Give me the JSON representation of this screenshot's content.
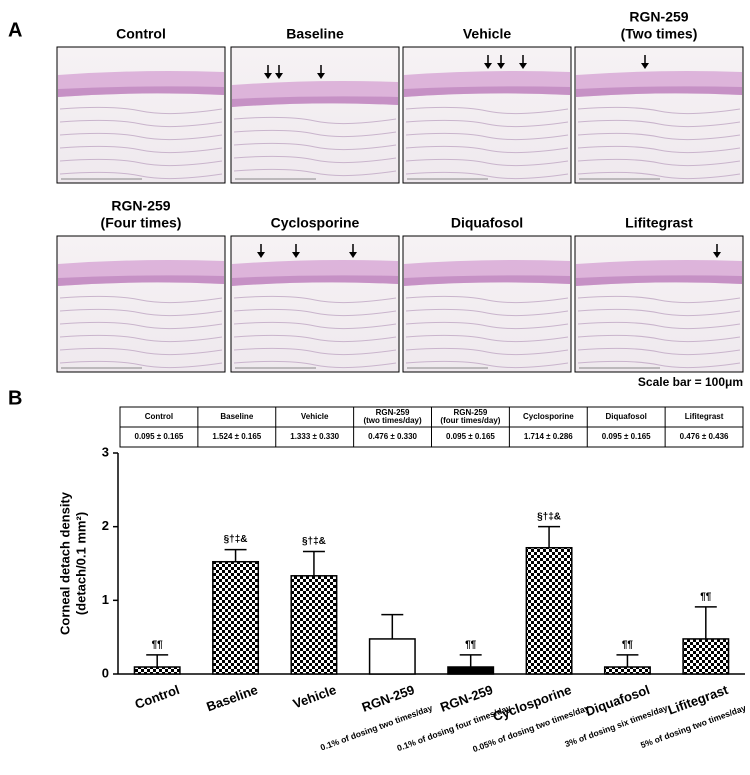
{
  "panel_a": {
    "label": "A",
    "panels": [
      {
        "title": [
          "Control"
        ]
      },
      {
        "title": [
          "Baseline"
        ]
      },
      {
        "title": [
          "Vehicle"
        ]
      },
      {
        "title": [
          "RGN-259",
          "(Two times)"
        ]
      },
      {
        "title": [
          "RGN-259",
          "(Four times)"
        ]
      },
      {
        "title": [
          "Cyclosporine"
        ]
      },
      {
        "title": [
          "Diquafosol"
        ]
      },
      {
        "title": [
          "Lifitegrast"
        ]
      }
    ],
    "scale_bar": "Scale bar = 100μm"
  },
  "panel_b": {
    "label": "B",
    "table": {
      "header": [
        "Control",
        "Baseline",
        "Vehicle",
        "RGN-259\n(two times/day)",
        "RGN-259\n(four times/day)",
        "Cyclosporine",
        "Diquafosol",
        "Lifitegrast"
      ],
      "row": [
        "0.095 ± 0.165",
        "1.524 ± 0.165",
        "1.333 ± 0.330",
        "0.476 ± 0.330",
        "0.095 ± 0.165",
        "1.714 ± 0.286",
        "0.095 ± 0.165",
        "0.476 ± 0.436"
      ]
    }
  },
  "chart_data": {
    "type": "bar",
    "y_label": [
      "Corneal detach density",
      "(detach/0.1 mm²)"
    ],
    "categories": [
      "Control",
      "Baseline",
      "Vehicle",
      "RGN-259",
      "RGN-259",
      "Cyclosporine",
      "Diquafosol",
      "Lifitegrast"
    ],
    "sublabels": [
      null,
      null,
      null,
      "0.1% of dosing two times/day",
      "0.1% of dosing four times/day",
      "0.05% of dosing two times/day",
      "3% of dosing six times/day",
      "5% of dosing two times/day"
    ],
    "values": [
      0.095,
      1.524,
      1.333,
      0.476,
      0.095,
      1.714,
      0.095,
      0.476
    ],
    "errors": [
      0.165,
      0.165,
      0.33,
      0.33,
      0.165,
      0.286,
      0.165,
      0.436
    ],
    "annotations": [
      "¶¶",
      "§†‡&",
      "§†‡&",
      null,
      "¶¶",
      "§†‡&",
      "¶¶",
      "¶¶"
    ],
    "fills": [
      "checker",
      "checker",
      "checker",
      "white",
      "black",
      "checker",
      "checker",
      "checker"
    ],
    "ylim": [
      0,
      3
    ],
    "yticks": [
      0,
      1,
      2,
      3
    ]
  }
}
